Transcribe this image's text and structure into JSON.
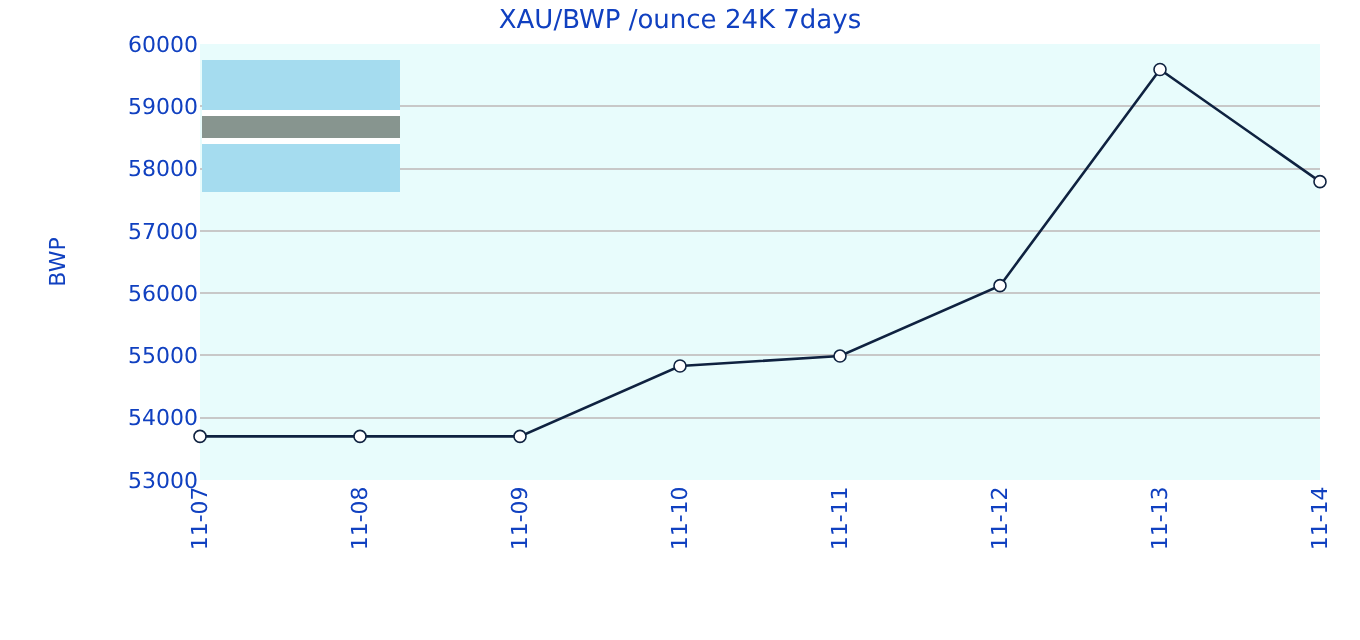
{
  "chart_data": {
    "type": "line",
    "title": "XAU/BWP /ounce 24K 7days",
    "ylabel": "BWP",
    "categories": [
      "11-07",
      "11-08",
      "11-09",
      "11-10",
      "11-11",
      "11-12",
      "11-13",
      "11-14"
    ],
    "series": [
      {
        "color": "#0f2240",
        "values": [
          53700,
          53700,
          53700,
          54830,
          54990,
          56120,
          59590,
          57790
        ]
      }
    ],
    "ylim": [
      53000,
      60000
    ],
    "yticks": [
      53000,
      54000,
      55000,
      56000,
      57000,
      58000,
      59000,
      60000
    ],
    "grid": "y",
    "marker": "circle",
    "line_style": "solid"
  }
}
